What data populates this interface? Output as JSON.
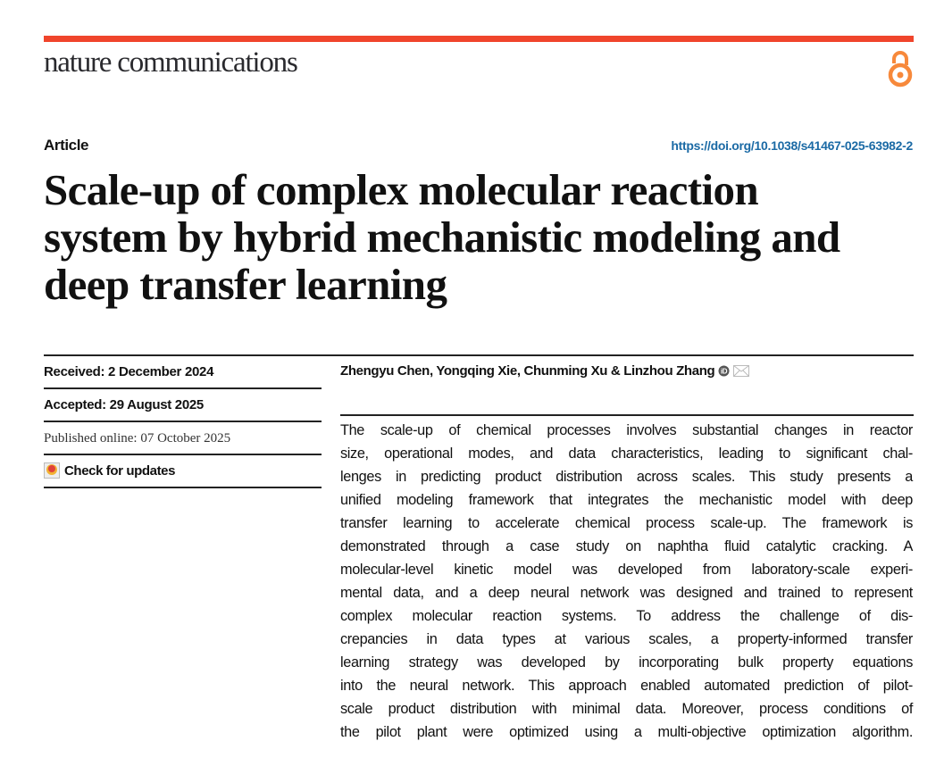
{
  "header": {
    "journal": "nature communications",
    "article_type": "Article",
    "doi": "https://doi.org/10.1038/s41467-025-63982-2",
    "brand_color": "#f0452c",
    "open_access_icon": "open-access-icon"
  },
  "title_lines": [
    "Scale-up of complex molecular reaction",
    "system by hybrid mechanistic modeling and",
    "deep transfer learning"
  ],
  "meta": {
    "received": "Received: 2 December 2024",
    "accepted": "Accepted: 29 August 2025",
    "published": "Published online: 07 October 2025",
    "check_updates": "Check for updates"
  },
  "authors": "Zhengyu Chen, Yongqing Xie, Chunming Xu & Linzhou Zhang",
  "abstract_lines": [
    "The scale-up of chemical processes involves substantial changes in reactor",
    "size, operational modes, and data characteristics, leading to significant chal-",
    "lenges in predicting product distribution across scales. This study presents a",
    "unified modeling framework that integrates the mechanistic model with deep",
    "transfer learning to accelerate chemical process scale-up. The framework is",
    "demonstrated through a case study on naphtha fluid catalytic cracking. A",
    "molecular-level kinetic model was developed from laboratory-scale experi-",
    "mental data, and a deep neural network was designed and trained to represent",
    "complex molecular reaction systems. To address the challenge of dis-",
    "crepancies in data types at various scales, a property-informed transfer",
    "learning strategy was developed by incorporating bulk property equations",
    "into the neural network. This approach enabled automated prediction of pilot-",
    "scale product distribution with minimal data. Moreover, process conditions of",
    "the pilot plant were optimized using a multi-objective optimization algorithm."
  ]
}
